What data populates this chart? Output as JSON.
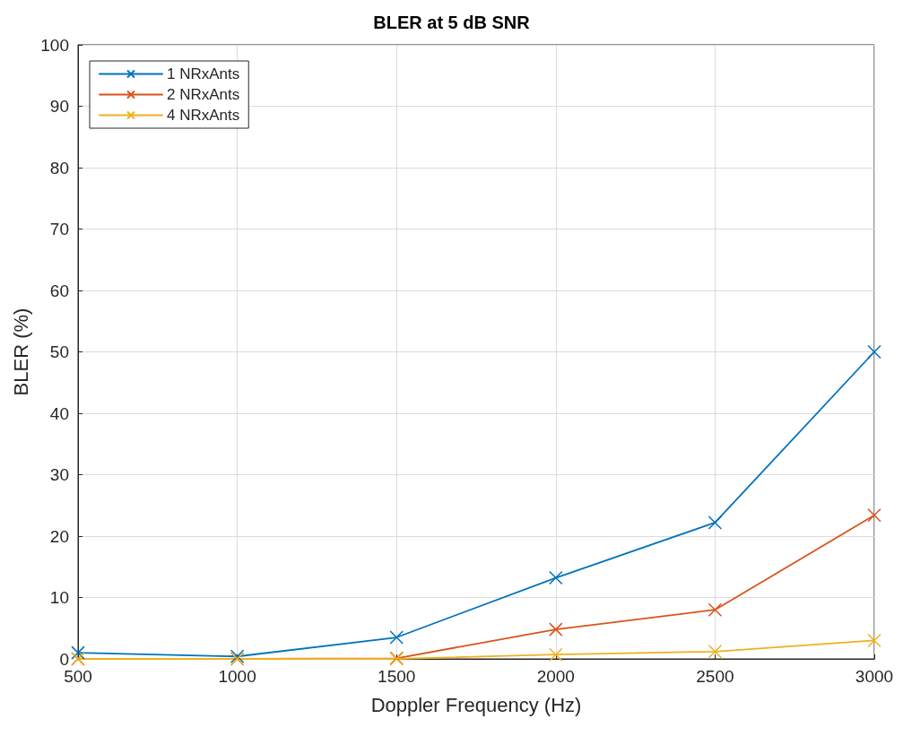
{
  "chart_data": {
    "type": "line",
    "title": "BLER at 5 dB SNR",
    "xlabel": "Doppler Frequency (Hz)",
    "ylabel": "BLER (%)",
    "x": [
      500,
      1000,
      1500,
      2000,
      2500,
      3000
    ],
    "series": [
      {
        "name": "1 NRxAnts",
        "color": "#0072bd",
        "values": [
          1.0,
          0.4,
          3.5,
          13.2,
          22.2,
          50.0
        ]
      },
      {
        "name": "2 NRxAnts",
        "color": "#d95319",
        "values": [
          0,
          0,
          0.1,
          4.8,
          8.0,
          23.4
        ]
      },
      {
        "name": "4 NRxAnts",
        "color": "#edb120",
        "values": [
          0,
          0,
          0,
          0.7,
          1.2,
          3.0
        ]
      }
    ],
    "xlim": [
      500,
      3000
    ],
    "xticks": [
      500,
      1000,
      1500,
      2000,
      2500,
      3000
    ],
    "ylim": [
      0,
      100
    ],
    "yticks": [
      0,
      10,
      20,
      30,
      40,
      50,
      60,
      70,
      80,
      90,
      100
    ],
    "grid": true,
    "legend": "top left",
    "marker": "cross",
    "line_style": "solid"
  }
}
